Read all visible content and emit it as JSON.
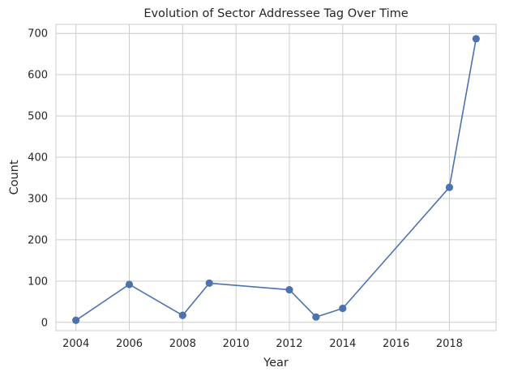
{
  "chart_data": {
    "type": "line",
    "title": "Evolution of Sector Addressee Tag Over Time",
    "xlabel": "Year",
    "ylabel": "Count",
    "x": [
      2004,
      2006,
      2008,
      2009,
      2012,
      2013,
      2014,
      2018,
      2019
    ],
    "series": [
      {
        "values": [
          5,
          92,
          17,
          95,
          79,
          13,
          34,
          327,
          687
        ]
      }
    ],
    "xlim": [
      2003.25,
      2019.75
    ],
    "ylim": [
      -20,
      722
    ],
    "xticks": [
      2004,
      2006,
      2008,
      2010,
      2012,
      2014,
      2016,
      2018
    ],
    "yticks": [
      0,
      100,
      200,
      300,
      400,
      500,
      600,
      700
    ],
    "grid": true,
    "line_color": "#4c72b0"
  }
}
